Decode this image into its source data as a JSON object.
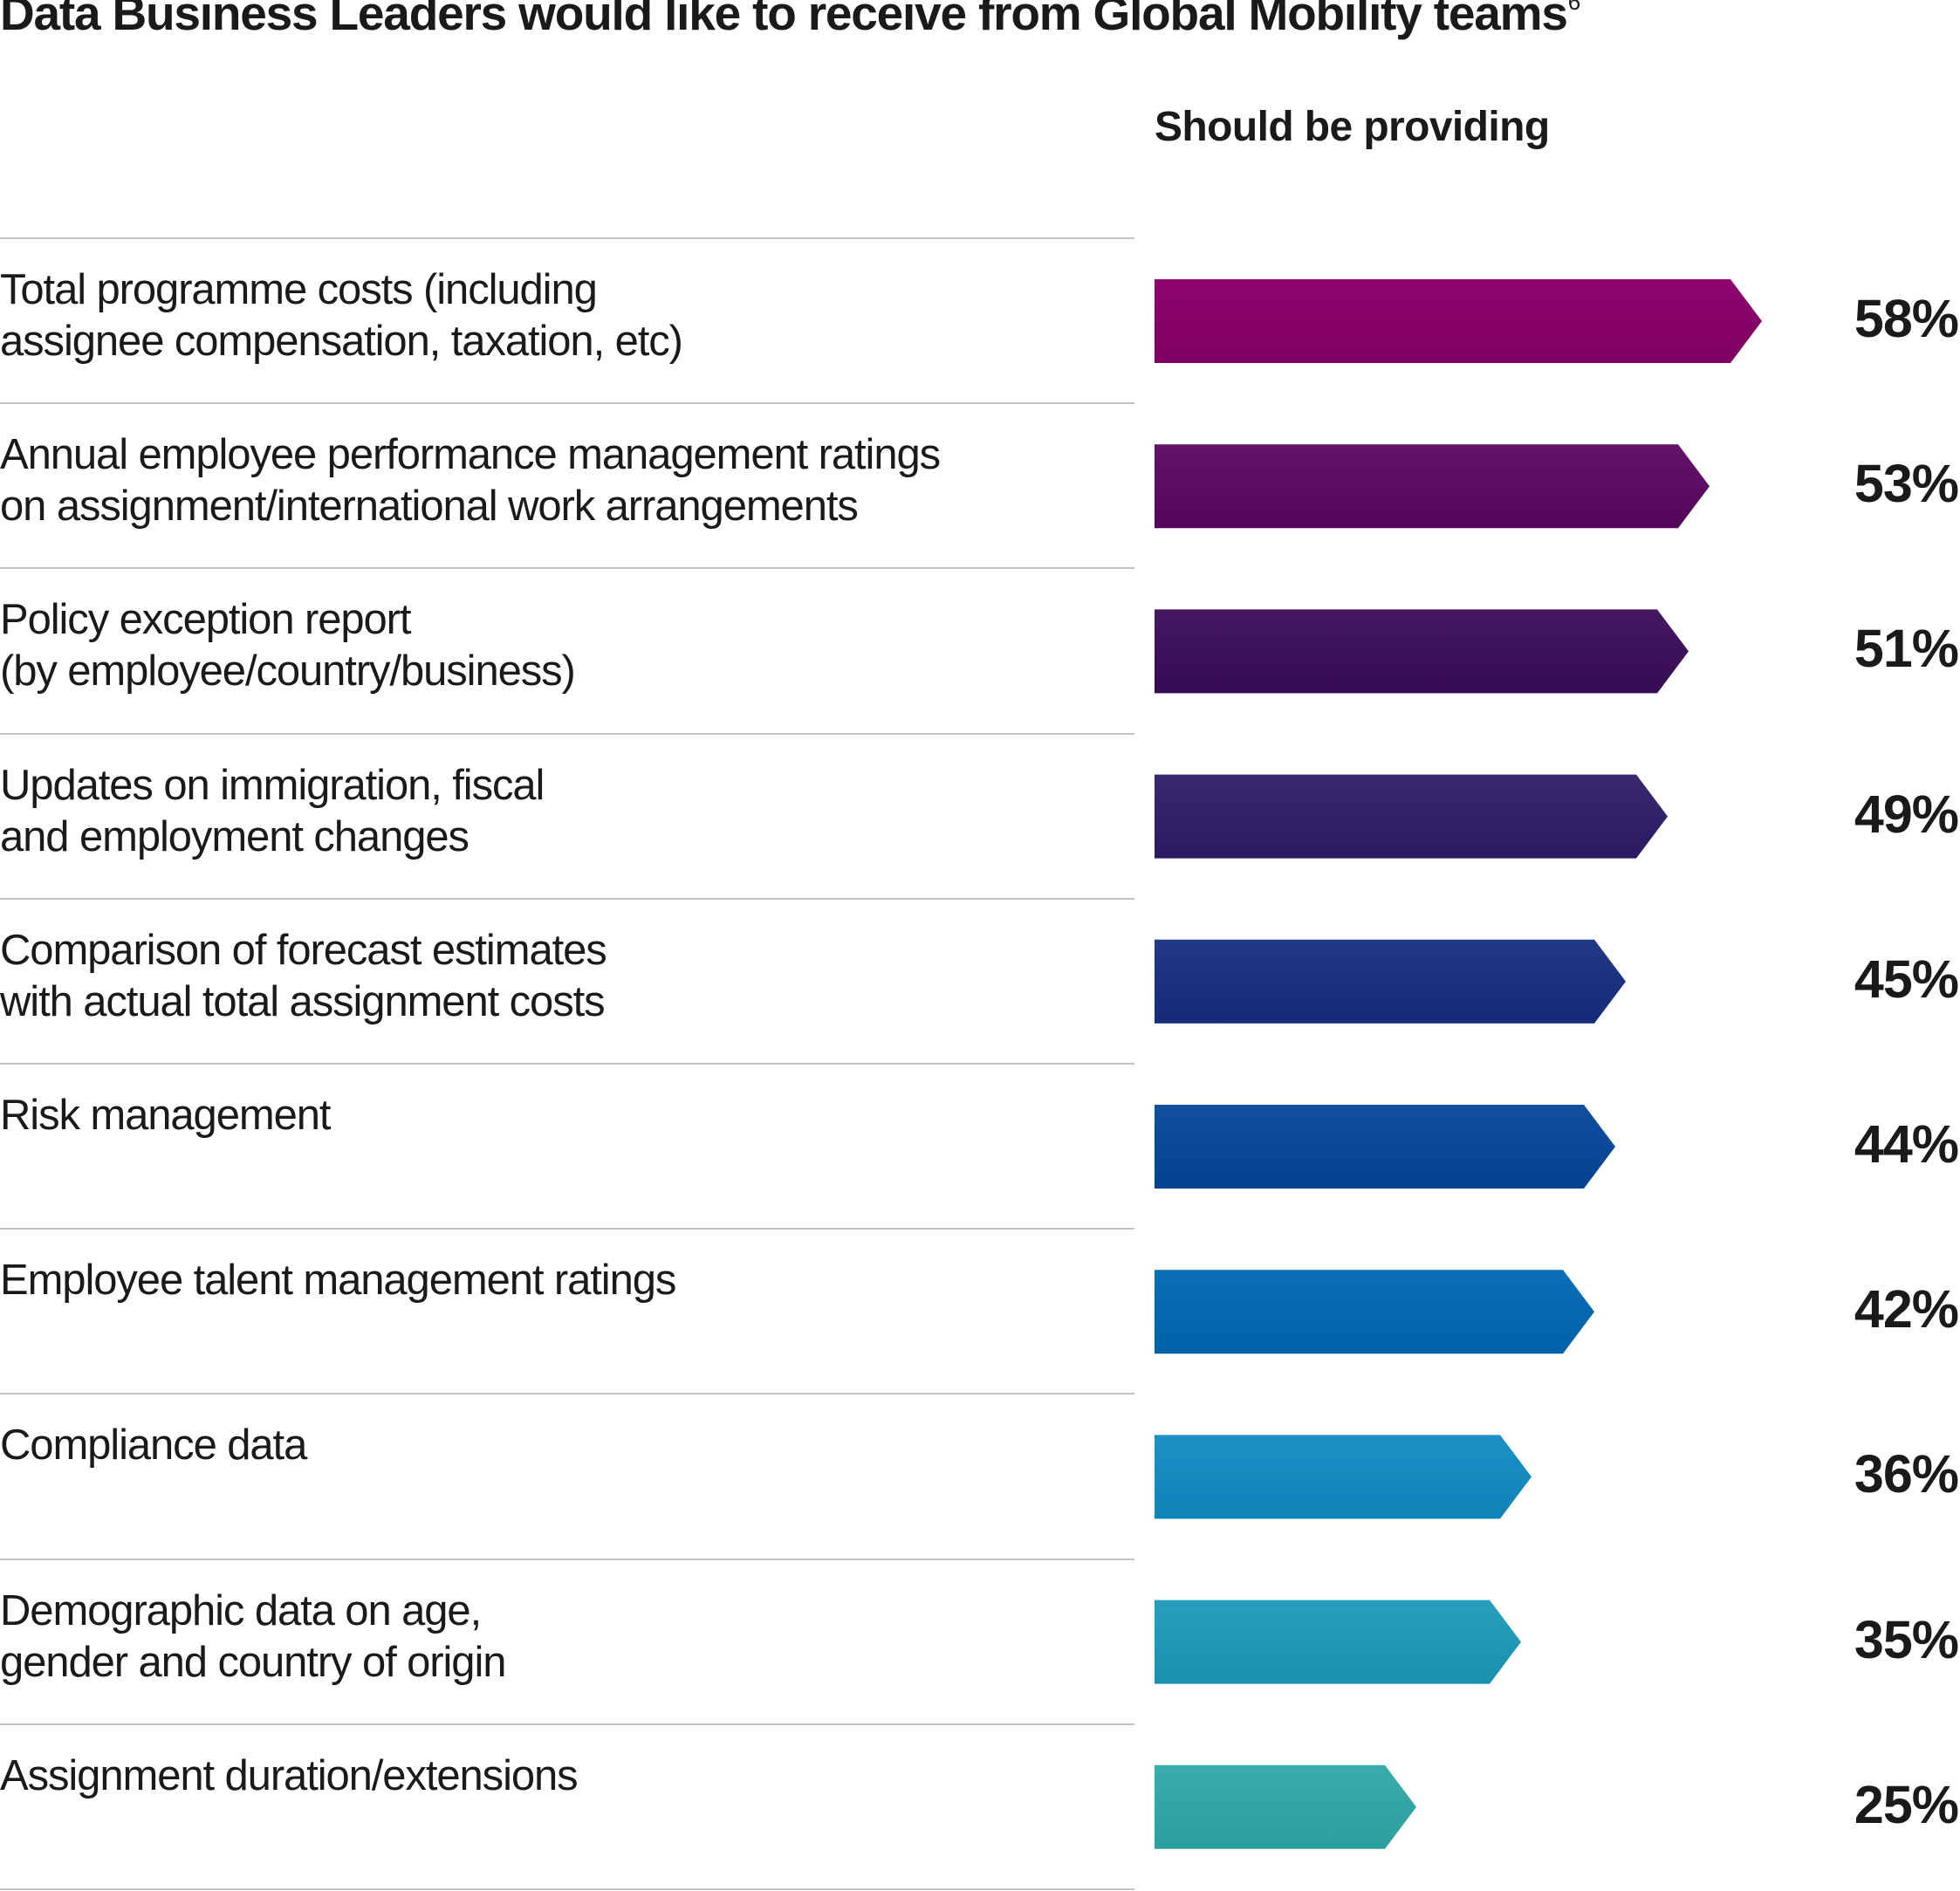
{
  "chart_data": {
    "type": "bar",
    "orientation": "horizontal",
    "title": "Data Business Leaders would like to receive from Global Mobility teams",
    "title_footnote": "6",
    "series_header": "Should be providing",
    "xlabel": "",
    "ylabel": "",
    "xlim": [
      0,
      100
    ],
    "grid": false,
    "legend": "none",
    "value_suffix": "%",
    "categories": [
      [
        "Total programme costs (including",
        "assignee compensation, taxation, etc)"
      ],
      [
        "Annual employee performance management ratings",
        "on assignment/international work arrangements"
      ],
      [
        "Policy exception report",
        "(by employee/country/business)"
      ],
      [
        "Updates on immigration, fiscal",
        "and employment changes"
      ],
      [
        "Comparison of forecast estimates",
        "with actual total assignment costs"
      ],
      [
        "Risk management"
      ],
      [
        "Employee talent management ratings"
      ],
      [
        "Compliance data"
      ],
      [
        "Demographic data on age,",
        "gender and country of origin"
      ],
      [
        "Assignment duration/extensions"
      ]
    ],
    "series": [
      {
        "name": "Should be providing",
        "values": [
          58,
          53,
          51,
          49,
          45,
          44,
          42,
          36,
          35,
          25
        ],
        "labels": [
          "58%",
          "53%",
          "51%",
          "49%",
          "45%",
          "44%",
          "42%",
          "36%",
          "35%",
          "25%"
        ],
        "colors": [
          "#870068",
          "#5e0e62",
          "#3f125c",
          "#32226a",
          "#1c3380",
          "#0a4a98",
          "#0569b0",
          "#168bc0",
          "#2199b6",
          "#33a7a6"
        ]
      }
    ]
  }
}
